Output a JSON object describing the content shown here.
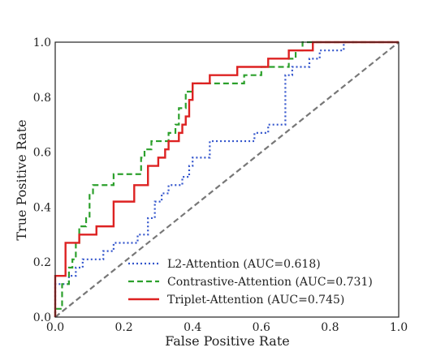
{
  "chart_data": {
    "type": "line",
    "xlabel": "False Positive Rate",
    "ylabel": "True Positive Rate",
    "xlim": [
      0.0,
      1.0
    ],
    "ylim": [
      0.0,
      1.0
    ],
    "xticks": [
      "0.0",
      "0.2",
      "0.4",
      "0.6",
      "0.8",
      "1.0"
    ],
    "yticks": [
      "0.0",
      "0.2",
      "0.4",
      "0.6",
      "0.8",
      "1.0"
    ],
    "grid": false,
    "legend_position": "bottom-right",
    "series": [
      {
        "name": "L2-Attention (AUC=0.618)",
        "color": "#3355cc",
        "style": "dotted",
        "x": [
          0.0,
          0.0,
          0.04,
          0.04,
          0.06,
          0.06,
          0.08,
          0.08,
          0.14,
          0.14,
          0.17,
          0.17,
          0.24,
          0.24,
          0.27,
          0.27,
          0.29,
          0.29,
          0.31,
          0.31,
          0.33,
          0.33,
          0.37,
          0.37,
          0.39,
          0.39,
          0.4,
          0.4,
          0.45,
          0.45,
          0.58,
          0.58,
          0.62,
          0.62,
          0.67,
          0.67,
          0.69,
          0.69,
          0.74,
          0.74,
          0.77,
          0.77,
          0.84,
          0.84,
          0.87
        ],
        "y": [
          0.0,
          0.12,
          0.12,
          0.15,
          0.15,
          0.18,
          0.18,
          0.21,
          0.21,
          0.24,
          0.24,
          0.27,
          0.27,
          0.3,
          0.3,
          0.36,
          0.36,
          0.42,
          0.42,
          0.45,
          0.45,
          0.48,
          0.48,
          0.51,
          0.51,
          0.55,
          0.55,
          0.58,
          0.58,
          0.64,
          0.64,
          0.67,
          0.67,
          0.7,
          0.7,
          0.88,
          0.88,
          0.91,
          0.91,
          0.94,
          0.94,
          0.97,
          0.97,
          1.0,
          1.0
        ]
      },
      {
        "name": "Contrastive-Attention (AUC=0.731)",
        "color": "#2ca02c",
        "style": "dashed",
        "x": [
          0.0,
          0.0,
          0.02,
          0.02,
          0.04,
          0.04,
          0.05,
          0.05,
          0.06,
          0.06,
          0.07,
          0.07,
          0.09,
          0.09,
          0.1,
          0.1,
          0.11,
          0.11,
          0.17,
          0.17,
          0.25,
          0.25,
          0.26,
          0.26,
          0.28,
          0.28,
          0.33,
          0.33,
          0.35,
          0.35,
          0.36,
          0.36,
          0.38,
          0.38,
          0.4,
          0.4,
          0.55,
          0.55,
          0.6,
          0.6,
          0.68,
          0.68,
          0.7,
          0.7,
          0.72,
          0.72,
          0.79,
          0.79,
          1.0
        ],
        "y": [
          0.0,
          0.03,
          0.03,
          0.12,
          0.12,
          0.18,
          0.18,
          0.21,
          0.21,
          0.27,
          0.27,
          0.33,
          0.33,
          0.36,
          0.36,
          0.45,
          0.45,
          0.48,
          0.48,
          0.52,
          0.52,
          0.58,
          0.58,
          0.61,
          0.61,
          0.64,
          0.64,
          0.67,
          0.67,
          0.7,
          0.7,
          0.76,
          0.76,
          0.82,
          0.82,
          0.85,
          0.85,
          0.88,
          0.88,
          0.91,
          0.91,
          0.94,
          0.94,
          0.97,
          0.97,
          1.0,
          1.0,
          1.0,
          1.0
        ]
      },
      {
        "name": "Triplet-Attention (AUC=0.745)",
        "color": "#dd2222",
        "style": "solid",
        "x": [
          0.0,
          0.0,
          0.03,
          0.03,
          0.07,
          0.07,
          0.09,
          0.09,
          0.12,
          0.12,
          0.17,
          0.17,
          0.23,
          0.23,
          0.27,
          0.27,
          0.3,
          0.3,
          0.32,
          0.32,
          0.33,
          0.33,
          0.36,
          0.36,
          0.37,
          0.37,
          0.38,
          0.38,
          0.39,
          0.39,
          0.4,
          0.4,
          0.45,
          0.45,
          0.53,
          0.53,
          0.62,
          0.62,
          0.68,
          0.68,
          0.75,
          0.75,
          0.94,
          0.94,
          1.0
        ],
        "y": [
          0.0,
          0.15,
          0.15,
          0.27,
          0.27,
          0.3,
          0.3,
          0.3,
          0.3,
          0.33,
          0.33,
          0.42,
          0.42,
          0.48,
          0.48,
          0.55,
          0.55,
          0.58,
          0.58,
          0.61,
          0.61,
          0.64,
          0.64,
          0.67,
          0.67,
          0.7,
          0.7,
          0.73,
          0.73,
          0.79,
          0.79,
          0.85,
          0.85,
          0.88,
          0.88,
          0.91,
          0.91,
          0.94,
          0.94,
          0.97,
          0.97,
          1.0,
          1.0,
          1.0,
          1.0
        ]
      }
    ],
    "reference_line": {
      "color": "#777777",
      "style": "dashed",
      "x": [
        0.0,
        1.0
      ],
      "y": [
        0.0,
        1.0
      ]
    }
  }
}
